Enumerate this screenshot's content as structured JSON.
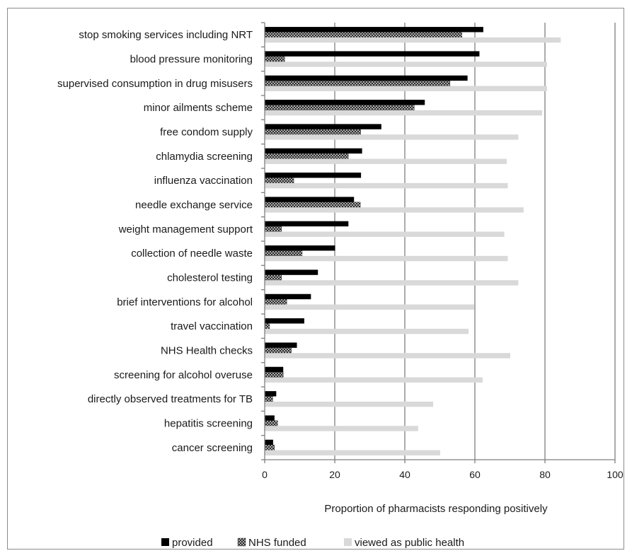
{
  "chart_data": {
    "type": "bar",
    "orientation": "horizontal",
    "xlabel": "Proportion of pharmacists responding positively",
    "ylabel": "",
    "xlim": [
      0,
      100
    ],
    "xticks": [
      0,
      20,
      40,
      60,
      80,
      100
    ],
    "grid": "vertical major gridlines",
    "legend_position": "bottom",
    "categories": [
      "stop smoking services including NRT",
      "blood pressure monitoring",
      "supervised consumption in drug misusers",
      "minor ailments scheme",
      "free condom supply",
      "chlamydia screening",
      "influenza vaccination",
      "needle exchange service",
      "weight management support",
      "collection of needle waste",
      "cholesterol testing",
      "brief interventions for alcohol",
      "travel vaccination",
      "NHS Health checks",
      "screening for alcohol overuse",
      "directly observed treatments for TB",
      "hepatitis screening",
      "cancer screening"
    ],
    "series": [
      {
        "name": "provided",
        "color": "#000000",
        "pattern": "solid",
        "values": [
          62.4,
          61.3,
          57.9,
          45.7,
          33.3,
          27.8,
          27.5,
          25.5,
          23.9,
          20.1,
          15.2,
          13.2,
          11.3,
          9.2,
          5.3,
          3.3,
          2.8,
          2.4
        ]
      },
      {
        "name": "NHS funded",
        "color": "#3a3a3a",
        "pattern": "crosshatch",
        "values": [
          56.3,
          5.7,
          52.9,
          42.7,
          27.4,
          23.9,
          8.3,
          27.3,
          4.8,
          10.7,
          4.8,
          6.3,
          1.4,
          7.6,
          5.3,
          2.3,
          3.7,
          2.8
        ]
      },
      {
        "name": "viewed as public health",
        "color": "#d9d9d9",
        "pattern": "solid",
        "values": [
          84.5,
          80.6,
          80.6,
          79.2,
          72.4,
          69.1,
          69.4,
          73.9,
          68.4,
          69.4,
          72.4,
          59.9,
          58.2,
          70.1,
          62.2,
          48.1,
          43.8,
          50.1
        ]
      }
    ]
  }
}
